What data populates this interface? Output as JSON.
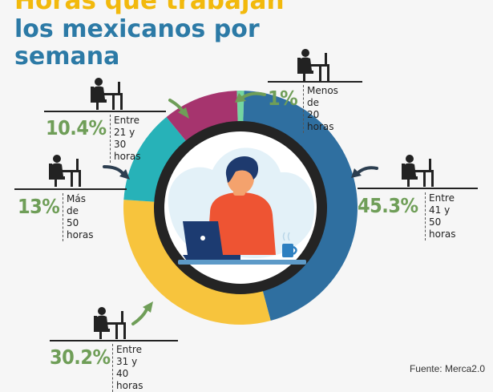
{
  "title": {
    "line1": "Horas que trabajan",
    "line2": "los mexicanos por",
    "line3": "semana"
  },
  "colors": {
    "title_top": "#f2b90c",
    "title_main": "#2c7aa6",
    "ring_dark": "#242424",
    "percent_text": "#6f9e58"
  },
  "chart_data": {
    "type": "pie",
    "style": "donut",
    "categories": [
      "Menos de 20 horas",
      "Entre 41 y 50 horas",
      "Entre 31 y 40 horas",
      "Más de 50 horas",
      "Entre 21 y 30 horas"
    ],
    "values": [
      1,
      45.3,
      30.2,
      13,
      10.4
    ],
    "unit": "%",
    "colors": [
      "#74d6a0",
      "#2f6fa0",
      "#f7c43d",
      "#27b2b8",
      "#a6346e"
    ],
    "labels": [
      {
        "value": "1%",
        "line1": "Menos de",
        "line2": "20 horas"
      },
      {
        "value": "45.3%",
        "line1": "Entre 41 y",
        "line2": "50 horas"
      },
      {
        "value": "30.2%",
        "line1": "Entre 31 y",
        "line2": "40 horas"
      },
      {
        "value": "13%",
        "line1": "Más de",
        "line2": "50 horas"
      },
      {
        "value": "10.4%",
        "line1": "Entre 21 y",
        "line2": "30 horas"
      }
    ]
  },
  "source": "Fuente: Merca2.0"
}
